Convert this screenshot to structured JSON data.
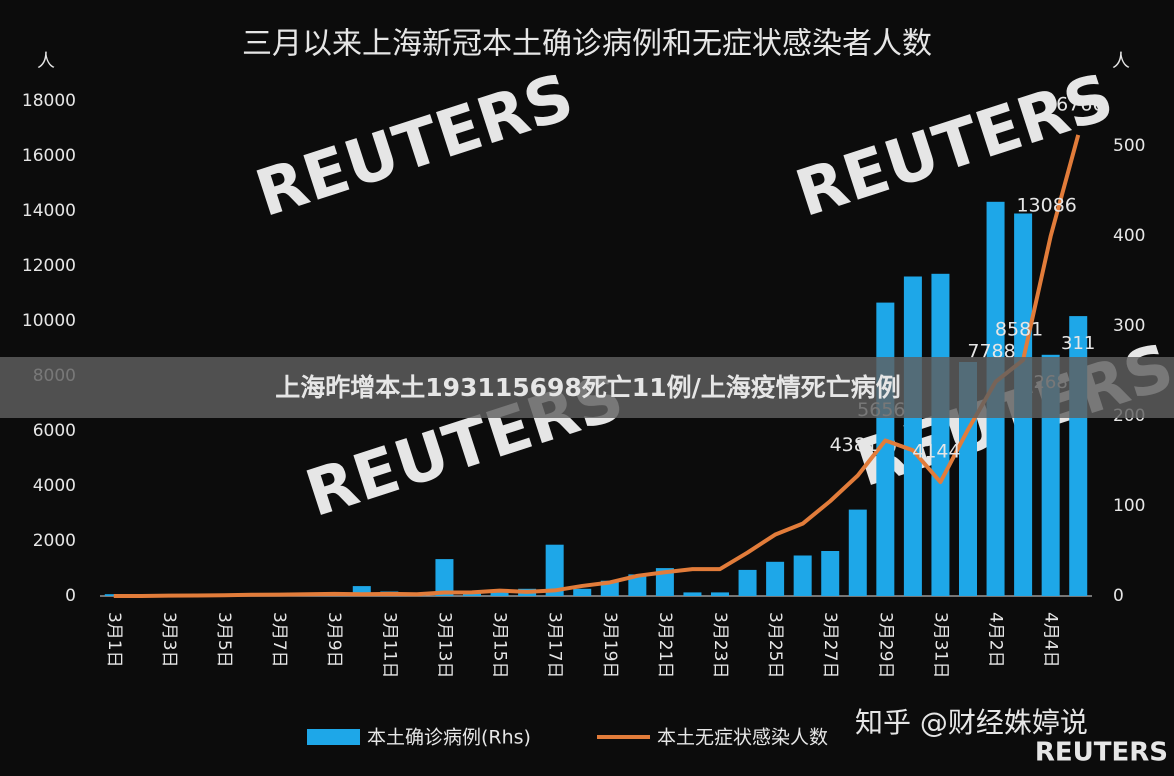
{
  "chart_data": {
    "type": "bar-line",
    "title": "三月以来上海新冠本土确诊病例和无症状感染者人数",
    "ylabel": "人",
    "y2label": "人",
    "categories": [
      "3月1日",
      null,
      "3月3日",
      null,
      "3月5日",
      null,
      "3月7日",
      null,
      "3月9日",
      null,
      "3月11日",
      null,
      "3月13日",
      null,
      "3月15日",
      null,
      "3月17日",
      null,
      "3月19日",
      null,
      "3月21日",
      null,
      "3月23日",
      null,
      "3月25日",
      null,
      "3月27日",
      null,
      "3月29日",
      null,
      "3月31日",
      null,
      "4月2日",
      null,
      "4月4日",
      null
    ],
    "series": [
      {
        "name": "本土确诊病例(Rhs)",
        "type": "bar",
        "axis": "y2",
        "color": "#1ea7e8",
        "values": [
          2,
          0,
          1,
          0,
          1,
          2,
          3,
          2,
          4,
          11,
          5,
          1,
          41,
          5,
          5,
          8,
          57,
          8,
          17,
          24,
          31,
          4,
          4,
          29,
          38,
          45,
          50,
          96,
          326,
          355,
          358,
          260,
          438,
          425,
          268,
          311
        ],
        "value_labels": [
          null,
          null,
          null,
          null,
          null,
          null,
          null,
          null,
          null,
          null,
          null,
          null,
          null,
          null,
          null,
          null,
          null,
          null,
          null,
          null,
          null,
          null,
          null,
          null,
          null,
          null,
          null,
          null,
          null,
          null,
          null,
          null,
          null,
          null,
          "268",
          "311"
        ]
      },
      {
        "name": "本土无症状感染人数",
        "type": "line",
        "color": "#e27c3a",
        "values": [
          0,
          2,
          14,
          16,
          28,
          45,
          51,
          62,
          76,
          64,
          78,
          64,
          128,
          130,
          197,
          150,
          203,
          366,
          492,
          734,
          865,
          977,
          979,
          1580,
          2231,
          2631,
          3450,
          4381,
          5656,
          5298,
          4144,
          6051,
          7788,
          8581,
          13086,
          16766
        ],
        "value_labels": [
          null,
          null,
          null,
          null,
          null,
          null,
          null,
          null,
          null,
          null,
          null,
          null,
          null,
          null,
          null,
          null,
          null,
          null,
          null,
          null,
          null,
          null,
          null,
          null,
          null,
          null,
          null,
          "4381",
          "5656",
          null,
          "4144",
          null,
          "7788",
          "8581",
          "13086",
          "16766"
        ]
      }
    ],
    "ylim": [
      0,
      18000
    ],
    "yticks": [
      0,
      2000,
      4000,
      6000,
      8000,
      10000,
      12000,
      14000,
      16000,
      18000
    ],
    "y2lim": [
      0,
      550
    ],
    "y2ticks": [
      0,
      100,
      200,
      300,
      400,
      500
    ],
    "banner": "上海昨增本土193115698死亡11例/上海疫情死亡病例",
    "watermarks": [
      "知乎 @财经姝婷说",
      "REUTERS"
    ]
  }
}
